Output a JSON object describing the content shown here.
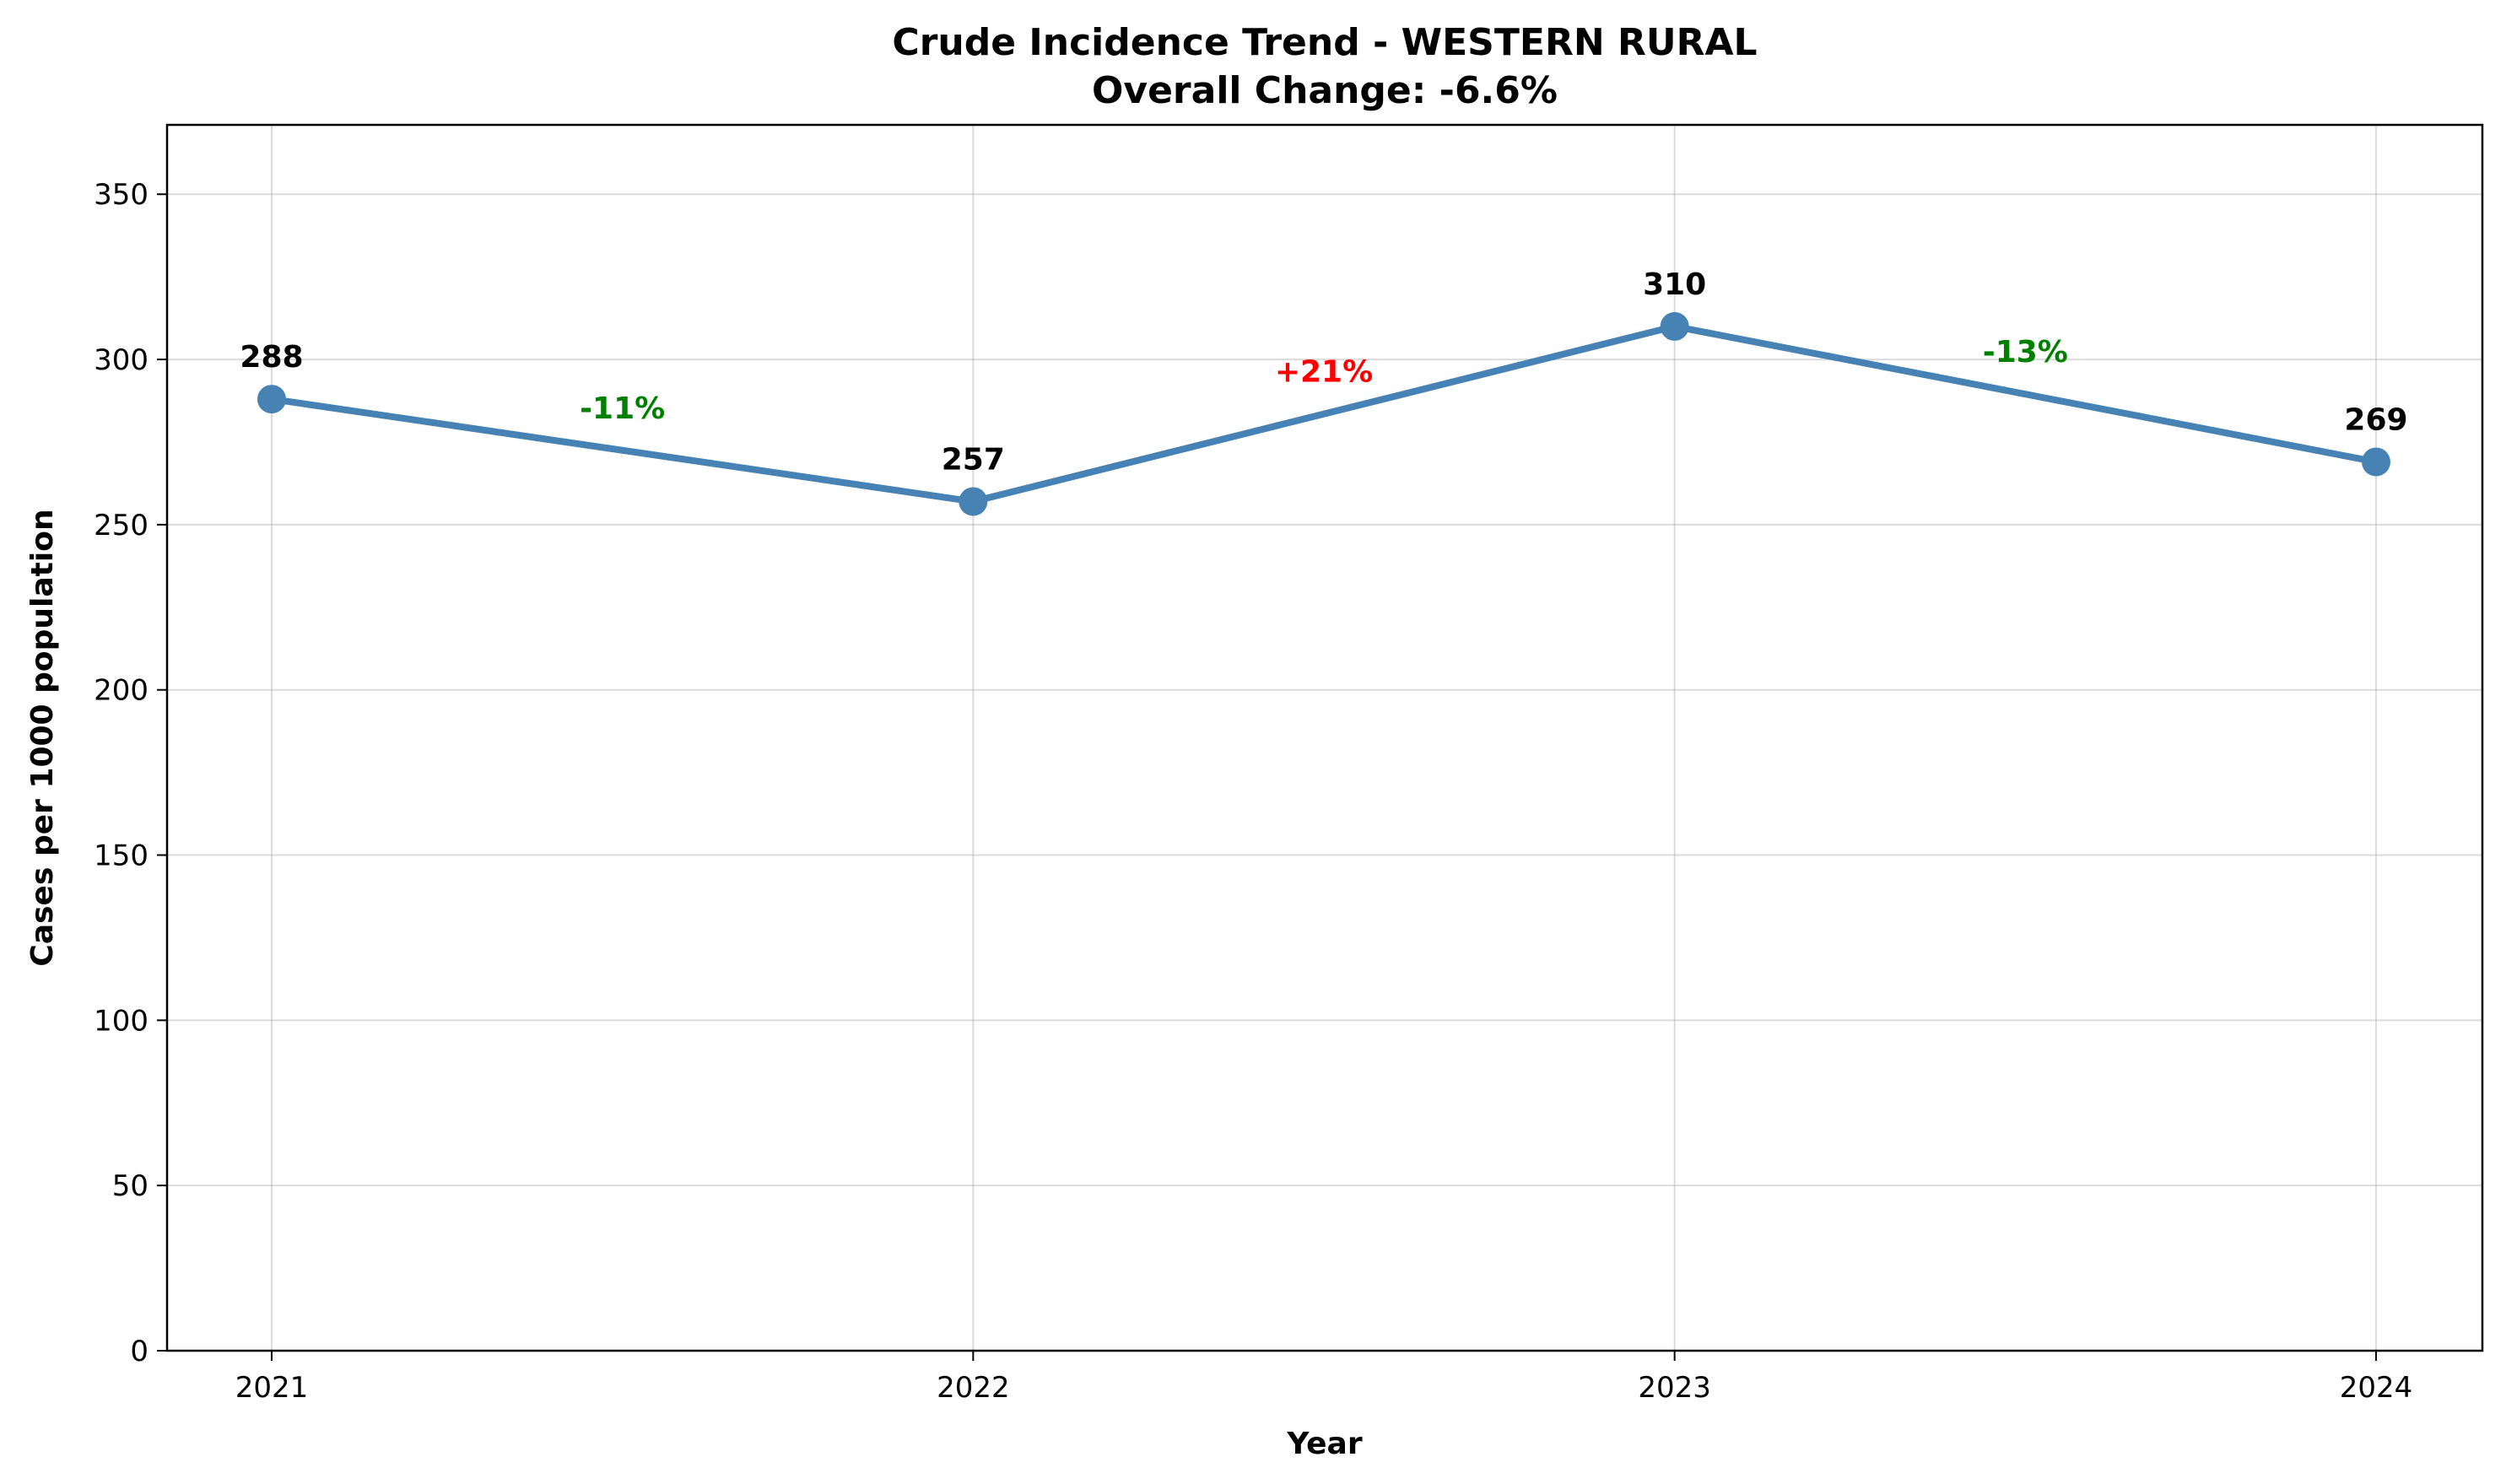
{
  "chart_data": {
    "type": "line",
    "title": "Crude Incidence Trend - WESTERN RURAL",
    "subtitle": "Overall Change: -6.6%",
    "xlabel": "Year",
    "ylabel": "Cases per 1000 population",
    "categories": [
      "2021",
      "2022",
      "2023",
      "2024"
    ],
    "values": [
      288,
      257,
      310,
      269
    ],
    "data_labels": [
      "288",
      "257",
      "310",
      "269"
    ],
    "changes": [
      {
        "label": "-11%",
        "color": "#008000"
      },
      {
        "label": "+21%",
        "color": "#ff0000"
      },
      {
        "label": "-13%",
        "color": "#008000"
      }
    ],
    "ylim": [
      0,
      371
    ],
    "yticks": [
      0,
      50,
      100,
      150,
      200,
      250,
      300,
      350
    ],
    "ytick_labels": [
      "0",
      "50",
      "100",
      "150",
      "200",
      "250",
      "300",
      "350"
    ],
    "grid": true,
    "line_color": "#4682b4"
  }
}
